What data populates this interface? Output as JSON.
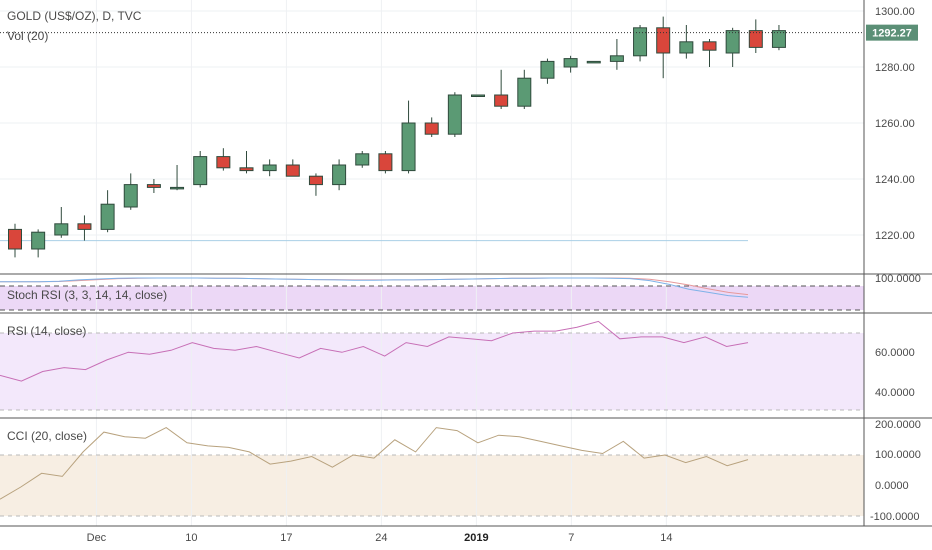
{
  "header": {
    "title": "GOLD (US$/OZ), D, TVC",
    "volume": "Vol (20)"
  },
  "price_badge": "1292.27",
  "chart_data": {
    "type": "candlestick",
    "price": {
      "last": 1292.27,
      "ylim": [
        1210,
        1302
      ],
      "ticks": [
        "1300.00",
        "1280.00",
        "1260.00",
        "1240.00",
        "1220.00"
      ],
      "tick_values": [
        1300,
        1280,
        1260,
        1240,
        1220
      ],
      "support_level": 1218,
      "candles": [
        {
          "o": 1222,
          "h": 1224,
          "l": 1212,
          "c": 1215
        },
        {
          "o": 1215,
          "h": 1222,
          "l": 1212,
          "c": 1221
        },
        {
          "o": 1220,
          "h": 1230,
          "l": 1219,
          "c": 1224
        },
        {
          "o": 1224,
          "h": 1227,
          "l": 1218,
          "c": 1222
        },
        {
          "o": 1222,
          "h": 1236,
          "l": 1221,
          "c": 1231
        },
        {
          "o": 1230,
          "h": 1242,
          "l": 1229,
          "c": 1238
        },
        {
          "o": 1238,
          "h": 1240,
          "l": 1235,
          "c": 1237
        },
        {
          "o": 1237,
          "h": 1245,
          "l": 1236,
          "c": 1237
        },
        {
          "o": 1238,
          "h": 1250,
          "l": 1237,
          "c": 1248
        },
        {
          "o": 1248,
          "h": 1251,
          "l": 1243,
          "c": 1244
        },
        {
          "o": 1244,
          "h": 1250,
          "l": 1242,
          "c": 1243
        },
        {
          "o": 1243,
          "h": 1247,
          "l": 1241,
          "c": 1245
        },
        {
          "o": 1245,
          "h": 1247,
          "l": 1241,
          "c": 1241
        },
        {
          "o": 1241,
          "h": 1242,
          "l": 1234,
          "c": 1238
        },
        {
          "o": 1238,
          "h": 1247,
          "l": 1236,
          "c": 1245
        },
        {
          "o": 1245,
          "h": 1250,
          "l": 1244,
          "c": 1249
        },
        {
          "o": 1249,
          "h": 1250,
          "l": 1242,
          "c": 1243
        },
        {
          "o": 1243,
          "h": 1268,
          "l": 1242,
          "c": 1260
        },
        {
          "o": 1260,
          "h": 1262,
          "l": 1255,
          "c": 1256
        },
        {
          "o": 1256,
          "h": 1271,
          "l": 1255,
          "c": 1270
        },
        {
          "o": 1270,
          "h": 1270,
          "l": 1270,
          "c": 1270
        },
        {
          "o": 1270,
          "h": 1279,
          "l": 1265,
          "c": 1266
        },
        {
          "o": 1266,
          "h": 1279,
          "l": 1265,
          "c": 1276
        },
        {
          "o": 1276,
          "h": 1283,
          "l": 1274,
          "c": 1282
        },
        {
          "o": 1280,
          "h": 1284,
          "l": 1278,
          "c": 1283
        },
        {
          "o": 1282,
          "h": 1282,
          "l": 1282,
          "c": 1282
        },
        {
          "o": 1282,
          "h": 1290,
          "l": 1279,
          "c": 1284
        },
        {
          "o": 1284,
          "h": 1295,
          "l": 1282,
          "c": 1294
        },
        {
          "o": 1294,
          "h": 1298,
          "l": 1276,
          "c": 1285
        },
        {
          "o": 1285,
          "h": 1295,
          "l": 1283,
          "c": 1289
        },
        {
          "o": 1289,
          "h": 1290,
          "l": 1280,
          "c": 1286
        },
        {
          "o": 1285,
          "h": 1294,
          "l": 1280,
          "c": 1293
        },
        {
          "o": 1293,
          "h": 1297,
          "l": 1285,
          "c": 1287
        },
        {
          "o": 1287,
          "h": 1295,
          "l": 1286,
          "c": 1293
        }
      ]
    },
    "x_ticks": [
      {
        "label": "Dec",
        "index": 6
      },
      {
        "label": "10",
        "index": 13
      },
      {
        "label": "17",
        "index": 20
      },
      {
        "label": "24",
        "index": 27
      },
      {
        "label": "2019",
        "index": 34,
        "bold": true
      },
      {
        "label": "7",
        "index": 41
      },
      {
        "label": "14",
        "index": 48
      }
    ],
    "stoch_rsi": {
      "title": "Stoch RSI (3, 3, 14, 14, close)",
      "top_tick": "100.0000",
      "k": [
        88,
        88,
        88,
        90,
        94,
        97,
        99,
        100,
        100,
        100,
        100,
        99,
        99,
        98,
        97,
        96,
        95,
        94,
        93,
        93,
        94,
        94,
        95,
        96,
        97,
        98,
        99,
        99,
        100,
        100,
        100,
        99,
        98,
        92,
        80,
        65,
        55,
        45,
        40
      ],
      "d": [
        88,
        88,
        88,
        89,
        92,
        95,
        98,
        99,
        100,
        100,
        100,
        99,
        99,
        98,
        97,
        96,
        95,
        95,
        94,
        94,
        94,
        94,
        95,
        96,
        97,
        98,
        99,
        99,
        100,
        100,
        100,
        100,
        99,
        96,
        88,
        78,
        66,
        55,
        48
      ]
    },
    "rsi": {
      "title": "RSI (14, close)",
      "ticks": [
        "60.0000",
        "40.0000"
      ],
      "values": [
        48,
        45,
        50,
        52,
        51,
        56,
        60,
        59,
        61,
        65,
        62,
        61,
        63,
        60,
        57,
        62,
        60,
        63,
        58,
        65,
        63,
        68,
        67,
        66,
        70,
        71,
        71,
        73,
        76,
        67,
        68,
        68,
        65,
        68,
        63,
        65
      ]
    },
    "cci": {
      "title": "CCI (20, close)",
      "ticks": [
        "200.0000",
        "100.0000",
        "0.0000",
        "-100.0000"
      ],
      "values": [
        -45,
        -5,
        40,
        30,
        110,
        175,
        160,
        155,
        190,
        140,
        130,
        125,
        110,
        70,
        80,
        95,
        60,
        100,
        90,
        150,
        110,
        190,
        180,
        140,
        165,
        160,
        145,
        130,
        115,
        105,
        145,
        90,
        100,
        75,
        95,
        65,
        85
      ]
    }
  }
}
